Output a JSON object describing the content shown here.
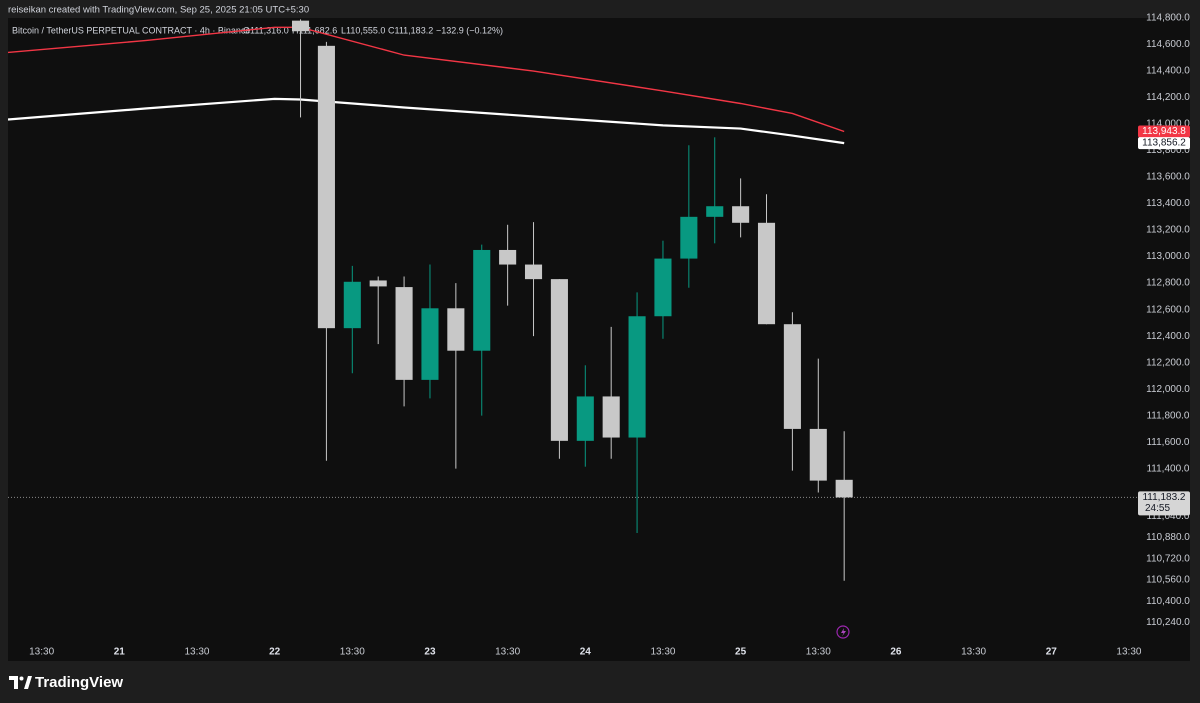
{
  "chart_data": {
    "type": "candlestick",
    "attribution": "reiseikan created with TradingView.com, Sep 25, 2025 21:05 UTC+5:30",
    "symbol": "Bitcoin / TetherUS PERPETUAL CONTRACT · 4h · Binance",
    "ohlc_labels": [
      "O111,316.0",
      "H111,682.6",
      "L110,555.0",
      "C111,183.2",
      "−132.9 (−0.12%)"
    ],
    "brand": "TradingView",
    "up_color": "#089981",
    "down_color": "#c8c8c8",
    "x": [
      1,
      2,
      3,
      4,
      5,
      6,
      7,
      8,
      9,
      10,
      11,
      12,
      13,
      14,
      15,
      16,
      17,
      18,
      19,
      20,
      21,
      22
    ],
    "open": [
      114780,
      114590,
      112460,
      112820,
      112770,
      112070,
      112610,
      112290,
      113050,
      112940,
      112830,
      111610,
      111945,
      111635,
      112550,
      112985,
      113300,
      113380,
      113255,
      112490,
      111700,
      111316.0
    ],
    "high": [
      114790,
      114620,
      112930,
      112850,
      112850,
      112940,
      112800,
      113090,
      113240,
      113260,
      112830,
      112180,
      112470,
      112730,
      113120,
      113840,
      113900,
      113590,
      113470,
      112580,
      112230,
      111682.6
    ],
    "low": [
      114050,
      111460,
      112120,
      112340,
      111870,
      111930,
      111400,
      111800,
      112630,
      112400,
      111475,
      111415,
      111475,
      110915,
      112380,
      112765,
      113100,
      113145,
      112490,
      111385,
      111220,
      110555.0
    ],
    "close": [
      114700,
      112460,
      112810,
      112775,
      112070,
      112610,
      112290,
      113050,
      112940,
      112830,
      111610,
      111945,
      111635,
      112550,
      112985,
      113300,
      113380,
      113255,
      112490,
      111700,
      111310,
      111183.2
    ],
    "series": [
      {
        "color": "#f23645",
        "x": [
          -10.3,
          -5,
          0,
          1,
          5,
          10,
          15,
          18,
          20,
          22
        ],
        "values": [
          114540,
          114630,
          114730,
          114730,
          114520,
          114400,
          114250,
          114155,
          114080,
          113943.8
        ]
      },
      {
        "color": "#ffffff",
        "x": [
          -10.3,
          -5,
          0,
          1,
          5,
          10,
          15,
          18,
          20,
          22
        ],
        "values": [
          114034,
          114117,
          114190,
          114185,
          114125,
          114057,
          113990,
          113966,
          113913,
          113856.2
        ]
      }
    ],
    "price_labels": [
      {
        "value": 113943.8,
        "label": "113,943.8",
        "color": "#f23645",
        "text_color": "#ffffff"
      },
      {
        "value": 113856.2,
        "label": "113,856.2",
        "color": "#ffffff",
        "text_color": "#131722"
      },
      {
        "value": 111183.2,
        "label": "111,183.2",
        "color": "#d6d6d6",
        "text_color": "#131722",
        "countdown": "24:55"
      }
    ],
    "xlim": [
      -10.3,
      33.35
    ],
    "xticks": [
      {
        "value": -9,
        "label": "13:30"
      },
      {
        "value": -6,
        "label": "21"
      },
      {
        "value": -3,
        "label": "13:30"
      },
      {
        "value": 0,
        "label": "22"
      },
      {
        "value": 3,
        "label": "13:30"
      },
      {
        "value": 6,
        "label": "23"
      },
      {
        "value": 9,
        "label": "13:30"
      },
      {
        "value": 12,
        "label": "24"
      },
      {
        "value": 15,
        "label": "13:30"
      },
      {
        "value": 18,
        "label": "25"
      },
      {
        "value": 21,
        "label": "13:30"
      },
      {
        "value": 24,
        "label": "26"
      },
      {
        "value": 27,
        "label": "13:30"
      },
      {
        "value": 30,
        "label": "27"
      },
      {
        "value": 33,
        "label": "13:30"
      }
    ],
    "ylim": [
      110100,
      114800
    ],
    "yticks": [
      {
        "value": 114800,
        "label": "114,800.0"
      },
      {
        "value": 114600,
        "label": "114,600.0"
      },
      {
        "value": 114400,
        "label": "114,400.0"
      },
      {
        "value": 114200,
        "label": "114,200.0"
      },
      {
        "value": 114000,
        "label": "114,000.0"
      },
      {
        "value": 113800,
        "label": "113,800.0"
      },
      {
        "value": 113600,
        "label": "113,600.0"
      },
      {
        "value": 113400,
        "label": "113,400.0"
      },
      {
        "value": 113200,
        "label": "113,200.0"
      },
      {
        "value": 113000,
        "label": "113,000.0"
      },
      {
        "value": 112800,
        "label": "112,800.0"
      },
      {
        "value": 112600,
        "label": "112,600.0"
      },
      {
        "value": 112400,
        "label": "112,400.0"
      },
      {
        "value": 112200,
        "label": "112,200.0"
      },
      {
        "value": 112000,
        "label": "112,000.0"
      },
      {
        "value": 111800,
        "label": "111,800.0"
      },
      {
        "value": 111600,
        "label": "111,600.0"
      },
      {
        "value": 111400,
        "label": "111,400.0"
      },
      {
        "value": 111040,
        "label": "111,040.0"
      },
      {
        "value": 110880,
        "label": "110,880.0"
      },
      {
        "value": 110720,
        "label": "110,720.0"
      },
      {
        "value": 110560,
        "label": "110,560.0"
      },
      {
        "value": 110400,
        "label": "110,400.0"
      },
      {
        "value": 110240,
        "label": "110,240.0"
      }
    ],
    "grid": false
  }
}
